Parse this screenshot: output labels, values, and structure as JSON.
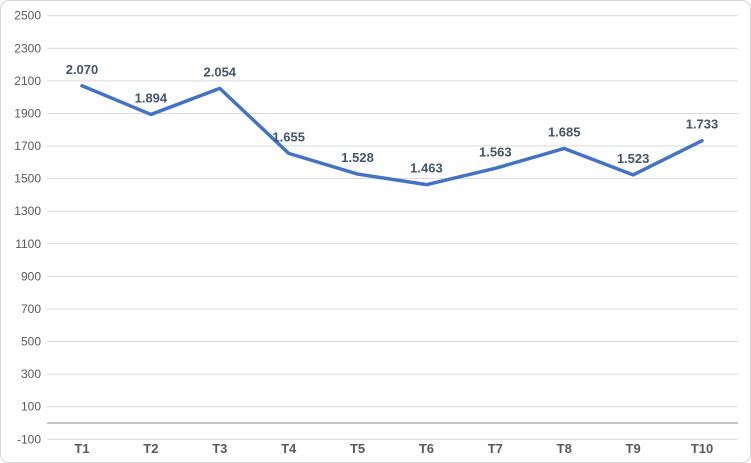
{
  "chart_data": {
    "type": "line",
    "title": "",
    "xlabel": "",
    "ylabel": "",
    "legend": "none",
    "grid": true,
    "categories": [
      "T1",
      "T2",
      "T3",
      "T4",
      "T5",
      "T6",
      "T7",
      "T8",
      "T9",
      "T10"
    ],
    "values": [
      2070,
      1894,
      2054,
      1655,
      1528,
      1463,
      1563,
      1685,
      1523,
      1733
    ],
    "labels": [
      "2.070",
      "1.894",
      "2.054",
      "1.655",
      "1.528",
      "1.463",
      "1.563",
      "1.685",
      "1.523",
      "1.733"
    ],
    "ylim": [
      -100,
      2500
    ],
    "y_tick_step": 200,
    "y_ticks": [
      -100,
      100,
      300,
      500,
      700,
      900,
      1100,
      1300,
      1500,
      1700,
      1900,
      2100,
      2300,
      2500
    ],
    "colors": {
      "line": "#4472C4",
      "data_label": "#44546A",
      "axis_text": "#595959",
      "gridline": "#D9D9D9",
      "zero_line": "#A6A6A6",
      "border": "#D6D6D6",
      "background": "#FFFFFF"
    }
  }
}
